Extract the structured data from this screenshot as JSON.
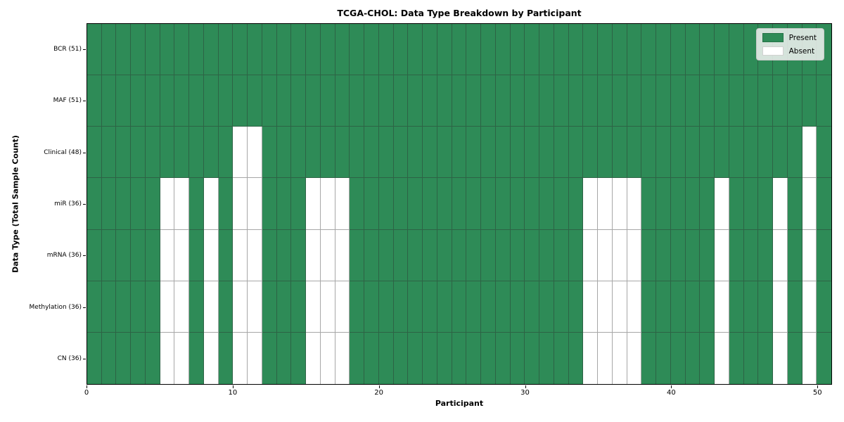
{
  "chart_data": {
    "type": "heatmap",
    "title": "TCGA-CHOL: Data Type Breakdown by Participant",
    "xlabel": "Participant",
    "ylabel": "Data Type (Total Sample Count)",
    "n_participants": 51,
    "x_ticks": [
      0,
      10,
      20,
      30,
      40,
      50
    ],
    "grid": "on",
    "legend_position": "upper right",
    "colors": {
      "present": "#2E8B57",
      "absent": "#FFFFFF",
      "gridline": "rgba(45,45,45,0.42)",
      "border": "#000000"
    },
    "legend": [
      {
        "label": "Present",
        "color": "#2E8B57"
      },
      {
        "label": "Absent",
        "color": "#FFFFFF"
      }
    ],
    "rows": [
      {
        "label": "BCR (51)",
        "data_type": "BCR",
        "total_samples": 51,
        "absent_participants": []
      },
      {
        "label": "MAF (51)",
        "data_type": "MAF",
        "total_samples": 51,
        "absent_participants": []
      },
      {
        "label": "Clinical (48)",
        "data_type": "Clinical",
        "total_samples": 48,
        "absent_participants": [
          10,
          11,
          49
        ]
      },
      {
        "label": "miR (36)",
        "data_type": "miR",
        "total_samples": 36,
        "absent_participants": [
          5,
          6,
          8,
          10,
          11,
          15,
          16,
          17,
          34,
          35,
          36,
          37,
          43,
          47,
          49
        ]
      },
      {
        "label": "mRNA (36)",
        "data_type": "mRNA",
        "total_samples": 36,
        "absent_participants": [
          5,
          6,
          8,
          10,
          11,
          15,
          16,
          17,
          34,
          35,
          36,
          37,
          43,
          47,
          49
        ]
      },
      {
        "label": "Methylation (36)",
        "data_type": "Methylation",
        "total_samples": 36,
        "absent_participants": [
          5,
          6,
          8,
          10,
          11,
          15,
          16,
          17,
          34,
          35,
          36,
          37,
          43,
          47,
          49
        ]
      },
      {
        "label": "CN (36)",
        "data_type": "CN",
        "total_samples": 36,
        "absent_participants": [
          5,
          6,
          8,
          10,
          11,
          15,
          16,
          17,
          34,
          35,
          36,
          37,
          43,
          47,
          49
        ]
      }
    ]
  }
}
